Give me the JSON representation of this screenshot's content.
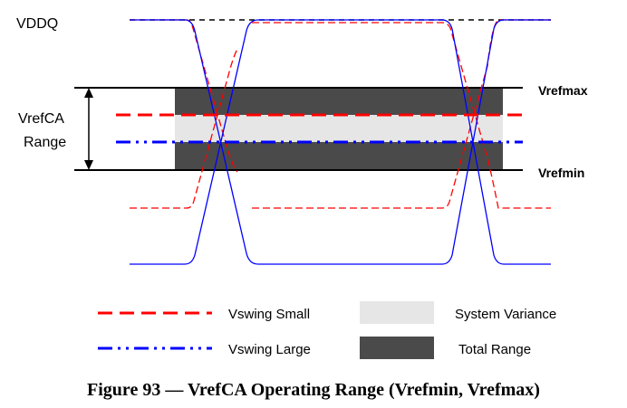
{
  "labels": {
    "vddq": "VDDQ",
    "range_line1": "VrefCA",
    "range_line2": "Range",
    "vrefmax": "Vrefmax",
    "vrefmin": "Vrefmin"
  },
  "legend": {
    "vswing_small": "Vswing Small",
    "vswing_large": "Vswing Large",
    "system_variance": "System Variance",
    "total_range": "Total Range"
  },
  "caption": "Figure 93 — VrefCA Operating Range (Vrefmin, Vrefmax)",
  "colors": {
    "vswing_small": "#ff0000",
    "vswing_large": "#0000ff",
    "system_variance": "#e6e6e6",
    "total_range": "#4a4a4a",
    "lines": "#000000"
  }
}
